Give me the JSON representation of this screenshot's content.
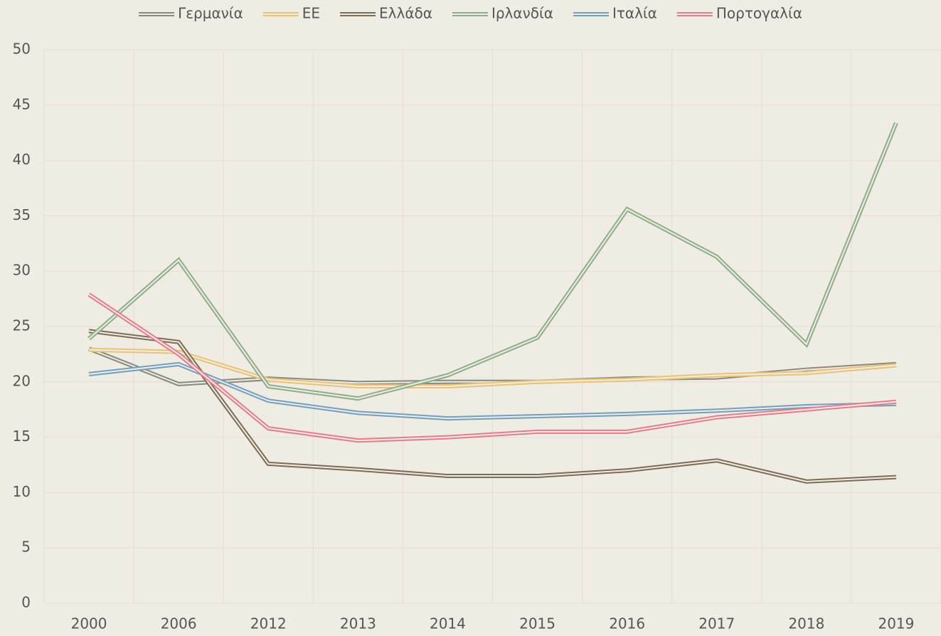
{
  "chart_data": {
    "type": "line",
    "categories": [
      "2000",
      "2006",
      "2012",
      "2013",
      "2014",
      "2015",
      "2016",
      "2017",
      "2018",
      "2019"
    ],
    "series": [
      {
        "name": "Γερμανία",
        "color": "#8b897f",
        "values": [
          23.0,
          19.8,
          20.3,
          19.9,
          20.0,
          20.0,
          20.3,
          20.4,
          21.1,
          21.6
        ]
      },
      {
        "name": "ΕΕ",
        "color": "#e9c274",
        "values": [
          22.9,
          22.7,
          20.2,
          19.6,
          19.6,
          20.0,
          20.2,
          20.6,
          20.8,
          21.5
        ]
      },
      {
        "name": "Ελλάδα",
        "color": "#7d6c56",
        "values": [
          24.6,
          23.6,
          12.6,
          12.1,
          11.5,
          11.5,
          12.0,
          12.9,
          11.0,
          11.4
        ]
      },
      {
        "name": "Ιρλανδία",
        "color": "#8ead8b",
        "values": [
          23.9,
          31.0,
          19.6,
          18.5,
          20.6,
          24.0,
          35.6,
          31.3,
          23.4,
          43.4
        ]
      },
      {
        "name": "Ιταλία",
        "color": "#739fbf",
        "values": [
          20.7,
          21.6,
          18.3,
          17.2,
          16.7,
          16.9,
          17.1,
          17.4,
          17.8,
          18.0
        ]
      },
      {
        "name": "Πορτογαλία",
        "color": "#e27d8e",
        "values": [
          27.9,
          22.5,
          15.8,
          14.7,
          15.0,
          15.5,
          15.5,
          16.8,
          17.5,
          18.2
        ]
      }
    ],
    "ylim": [
      0,
      50
    ],
    "yticks": [
      0,
      5,
      10,
      15,
      20,
      25,
      30,
      35,
      40,
      45,
      50
    ],
    "grid": true,
    "legend": "top"
  }
}
